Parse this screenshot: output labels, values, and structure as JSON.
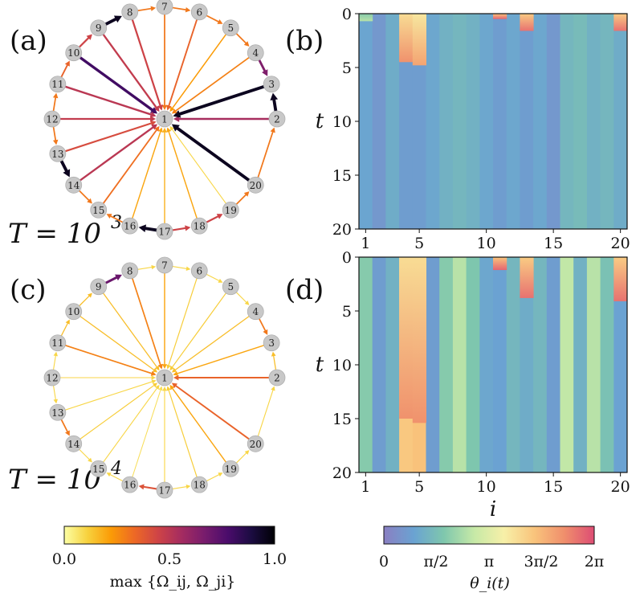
{
  "panels": [
    {
      "label": "(a)",
      "T_label": "T = 10",
      "T_exp": "3"
    },
    {
      "label": "(b)"
    },
    {
      "label": "(c)",
      "T_label": "T = 10",
      "T_exp": "4"
    },
    {
      "label": "(d)"
    }
  ],
  "nodes": [
    "1",
    "2",
    "3",
    "4",
    "5",
    "6",
    "7",
    "8",
    "9",
    "10",
    "11",
    "12",
    "13",
    "14",
    "15",
    "16",
    "17",
    "18",
    "19",
    "20"
  ],
  "graph_a": {
    "spokes": [
      0.55,
      0.95,
      0.28,
      0.22,
      0.35,
      0.3,
      0.45,
      0.48,
      0.8,
      0.5,
      0.48,
      0.42,
      0.5,
      0.32,
      0.2,
      0.18,
      0.2,
      0.1,
      0.95,
      0.95
    ],
    "ring": [
      0.95,
      0.65,
      0.3,
      0.3,
      0.3,
      0.3,
      0.95,
      0.45,
      0.35,
      0.3,
      0.3,
      0.95,
      0.3,
      0.3,
      0.95,
      0.45,
      0.45,
      0.3,
      0.3,
      0.15
    ]
  },
  "graph_c": {
    "spokes": [
      0.35,
      0.2,
      0.15,
      0.12,
      0.12,
      0.2,
      0.28,
      0.15,
      0.15,
      0.28,
      0.1,
      0.1,
      0.12,
      0.1,
      0.08,
      0.1,
      0.12,
      0.2,
      0.35,
      0.4
    ],
    "ring": [
      0.15,
      0.3,
      0.1,
      0.1,
      0.1,
      0.1,
      0.7,
      0.15,
      0.15,
      0.1,
      0.1,
      0.3,
      0.1,
      0.1,
      0.4,
      0.1,
      0.1,
      0.1,
      0.1,
      0.15
    ]
  },
  "heatmaps": {
    "x_ticks": [
      "1",
      "5",
      "10",
      "15",
      "20"
    ],
    "y_ticks": [
      "0",
      "5",
      "10",
      "15",
      "20"
    ],
    "xlabel": "i",
    "ylabel": "t",
    "b_steady": [
      0.15,
      0.1,
      0.18,
      0.12,
      0.12,
      0.16,
      0.2,
      0.22,
      0.2,
      0.16,
      0.12,
      0.16,
      0.12,
      0.16,
      0.1,
      0.22,
      0.24,
      0.2,
      0.22,
      0.18
    ],
    "d_steady": [
      0.3,
      0.12,
      0.2,
      0.7,
      0.72,
      0.12,
      0.3,
      0.4,
      0.28,
      0.16,
      0.14,
      0.22,
      0.18,
      0.22,
      0.12,
      0.42,
      0.2,
      0.4,
      0.26,
      0.14
    ],
    "b_transient": [
      {
        "col": 0,
        "t_end": 0.7,
        "v": 0.4
      },
      {
        "col": 3,
        "t_end": 4.5,
        "v": 0.85
      },
      {
        "col": 4,
        "t_end": 4.8,
        "v": 0.8
      },
      {
        "col": 10,
        "t_end": 0.5,
        "v": 0.95
      },
      {
        "col": 12,
        "t_end": 1.6,
        "v": 0.92
      },
      {
        "col": 19,
        "t_end": 1.6,
        "v": 0.92
      }
    ],
    "d_transient": [
      {
        "col": 3,
        "t_end": 15.0,
        "v": 0.85
      },
      {
        "col": 4,
        "t_end": 15.4,
        "v": 0.85
      },
      {
        "col": 10,
        "t_end": 1.2,
        "v": 0.95
      },
      {
        "col": 12,
        "t_end": 3.8,
        "v": 0.92
      },
      {
        "col": 19,
        "t_end": 4.1,
        "v": 0.92
      }
    ]
  },
  "colorbar_left": {
    "ticks": [
      "0.0",
      "0.5",
      "1.0"
    ],
    "label": "max {Ω_ij, Ω_ji}",
    "colors": [
      "#fcffa4",
      "#f7d13d",
      "#fb9b06",
      "#ed6925",
      "#cf4446",
      "#a52c60",
      "#781c6d",
      "#4a0c6b",
      "#1b0c41",
      "#000004"
    ]
  },
  "colorbar_right": {
    "ticks": [
      "0",
      "π/2",
      "π",
      "3π/2",
      "2π"
    ],
    "label": "θ_i(t)",
    "colors": [
      "#8a7fc2",
      "#6aa3d2",
      "#7fc7ad",
      "#c6e9a7",
      "#f7f0a8",
      "#f9c47c",
      "#f08f6c",
      "#dd4d74"
    ]
  }
}
